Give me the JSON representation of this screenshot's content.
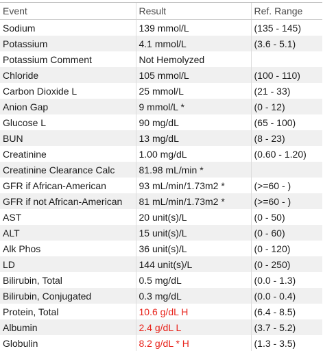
{
  "table": {
    "header": [
      "Event",
      "Result",
      "Ref. Range"
    ],
    "rows": [
      {
        "event": "Sodium",
        "result": "139 mmol/L",
        "range": "(135 - 145)"
      },
      {
        "event": "Potassium",
        "result": "4.1 mmol/L",
        "range": "(3.6 - 5.1)"
      },
      {
        "event": "Potassium Comment",
        "result": "Not Hemolyzed",
        "range": ""
      },
      {
        "event": "Chloride",
        "result": "105 mmol/L",
        "range": "(100 - 110)"
      },
      {
        "event": "Carbon Dioxide L",
        "result": "25 mmol/L",
        "range": "(21 - 33)"
      },
      {
        "event": "Anion Gap",
        "result": "9 mmol/L *",
        "range": "(0 - 12)"
      },
      {
        "event": "Glucose L",
        "result": "90 mg/dL",
        "range": "(65 - 100)"
      },
      {
        "event": "BUN",
        "result": "13 mg/dL",
        "range": "(8 - 23)"
      },
      {
        "event": "Creatinine",
        "result": "1.00 mg/dL",
        "range": "(0.60 - 1.20)"
      },
      {
        "event": "Creatinine Clearance Calc",
        "result": "81.98 mL/min *",
        "range": ""
      },
      {
        "event": "GFR if African-American",
        "result": "93 mL/min/1.73m2 *",
        "range": "(>=60 - )"
      },
      {
        "event": "GFR if not African-American",
        "result": "81 mL/min/1.73m2 *",
        "range": "(>=60 - )"
      },
      {
        "event": "AST",
        "result": "20 unit(s)/L",
        "range": "(0 - 50)"
      },
      {
        "event": "ALT",
        "result": "15 unit(s)/L",
        "range": "(0 - 60)"
      },
      {
        "event": "Alk Phos",
        "result": "36 unit(s)/L",
        "range": "(0 - 120)"
      },
      {
        "event": "LD",
        "result": "144 unit(s)/L",
        "range": "(0 - 250)"
      },
      {
        "event": "Bilirubin, Total",
        "result": "0.5 mg/dL",
        "range": "(0.0 - 1.3)"
      },
      {
        "event": "Bilirubin, Conjugated",
        "result": "0.3 mg/dL",
        "range": "(0.0 - 0.4)"
      },
      {
        "event": "Protein, Total",
        "result": "10.6 g/dL H",
        "range": "(6.4 - 8.5)",
        "color": "#e8231b"
      },
      {
        "event": "Albumin",
        "result": "2.4 g/dL L",
        "range": "(3.7 - 5.2)",
        "color": "#e8231b"
      },
      {
        "event": "Globulin",
        "result": "8.2 g/dL * H",
        "range": "(1.3 - 3.5)",
        "color": "#e8231b"
      }
    ]
  }
}
